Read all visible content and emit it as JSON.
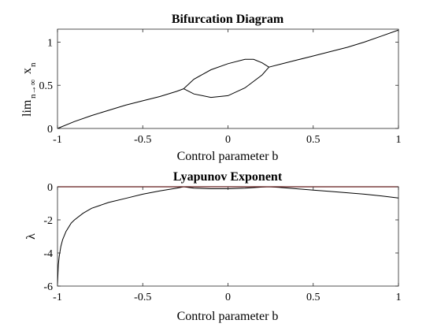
{
  "chart_data": [
    {
      "type": "line",
      "title": "Bifurcation Diagram",
      "xlabel": "Control parameter b",
      "ylabel": {
        "main": "lim",
        "subscript": "n→∞",
        "var": "x",
        "var_subscript": "n"
      },
      "xlim": [
        -1,
        1
      ],
      "ylim": [
        0,
        1.15
      ],
      "xticks": [
        -1,
        -0.5,
        0,
        0.5,
        1
      ],
      "xtick_labels": [
        "-1",
        "-0.5",
        "0",
        "0.5",
        "1"
      ],
      "yticks": [
        0,
        0.5,
        1
      ],
      "ytick_labels": [
        "0",
        "0.5",
        "1"
      ],
      "grid": false,
      "series": [
        {
          "color": "#000000",
          "x": [
            -1,
            -0.9,
            -0.8,
            -0.7,
            -0.6,
            -0.5,
            -0.4,
            -0.3,
            -0.26
          ],
          "y": [
            0,
            0.08,
            0.15,
            0.21,
            0.27,
            0.32,
            0.37,
            0.43,
            0.46
          ]
        },
        {
          "color": "#000000",
          "x": [
            -0.26,
            -0.2,
            -0.1,
            0,
            0.1,
            0.15,
            0.2,
            0.24
          ],
          "y": [
            0.46,
            0.57,
            0.68,
            0.75,
            0.8,
            0.8,
            0.76,
            0.71
          ]
        },
        {
          "color": "#000000",
          "x": [
            -0.26,
            -0.2,
            -0.1,
            0,
            0.1,
            0.2,
            0.24
          ],
          "y": [
            0.46,
            0.4,
            0.36,
            0.38,
            0.47,
            0.62,
            0.71
          ]
        },
        {
          "color": "#000000",
          "x": [
            0.24,
            0.3,
            0.4,
            0.5,
            0.6,
            0.7,
            0.8,
            0.9,
            1
          ],
          "y": [
            0.71,
            0.74,
            0.79,
            0.84,
            0.89,
            0.94,
            1.0,
            1.07,
            1.14
          ]
        }
      ]
    },
    {
      "type": "line",
      "title": "Lyapunov Exponent",
      "xlabel": "Control parameter b",
      "ylabel": {
        "main": "λ"
      },
      "xlim": [
        -1,
        1
      ],
      "ylim": [
        -6,
        0
      ],
      "xticks": [
        -1,
        -0.5,
        0,
        0.5,
        1
      ],
      "xtick_labels": [
        "-1",
        "-0.5",
        "0",
        "0.5",
        "1"
      ],
      "yticks": [
        -6,
        -4,
        -2,
        0
      ],
      "ytick_labels": [
        "-6",
        "-4",
        "-2",
        "0"
      ],
      "grid": false,
      "series": [
        {
          "color": "#000000",
          "x": [
            -1,
            -0.995,
            -0.99,
            -0.98,
            -0.97,
            -0.95,
            -0.92,
            -0.9,
            -0.85,
            -0.8,
            -0.7,
            -0.6,
            -0.5,
            -0.4,
            -0.3,
            -0.26,
            -0.2,
            -0.1,
            0,
            0.1,
            0.2,
            0.24,
            0.3,
            0.4,
            0.5,
            0.6,
            0.7,
            0.8,
            0.9,
            1
          ],
          "y": [
            -5.9,
            -4.7,
            -4.2,
            -3.6,
            -3.2,
            -2.7,
            -2.2,
            -2.0,
            -1.6,
            -1.3,
            -0.95,
            -0.7,
            -0.45,
            -0.25,
            -0.08,
            0,
            -0.08,
            -0.12,
            -0.12,
            -0.08,
            -0.02,
            0,
            -0.04,
            -0.12,
            -0.2,
            -0.28,
            -0.36,
            -0.45,
            -0.55,
            -0.68
          ]
        },
        {
          "color": "#cc0000",
          "x": [
            -1,
            1
          ],
          "y": [
            0,
            0
          ]
        }
      ]
    }
  ]
}
